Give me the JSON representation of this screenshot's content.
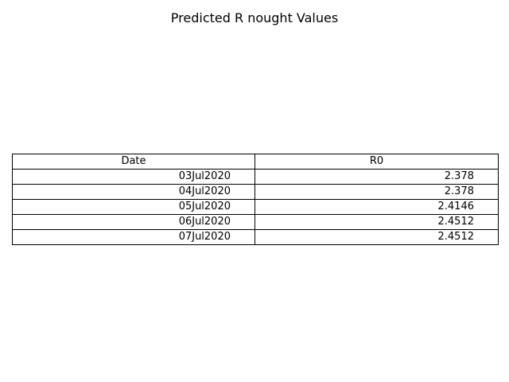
{
  "chart_data": {
    "type": "table",
    "title": "Predicted R nought Values",
    "columns": [
      "Date",
      "R0"
    ],
    "rows": [
      [
        "03Jul2020",
        "2.378"
      ],
      [
        "04Jul2020",
        "2.378"
      ],
      [
        "05Jul2020",
        "2.4146"
      ],
      [
        "06Jul2020",
        "2.4512"
      ],
      [
        "07Jul2020",
        "2.4512"
      ]
    ]
  }
}
